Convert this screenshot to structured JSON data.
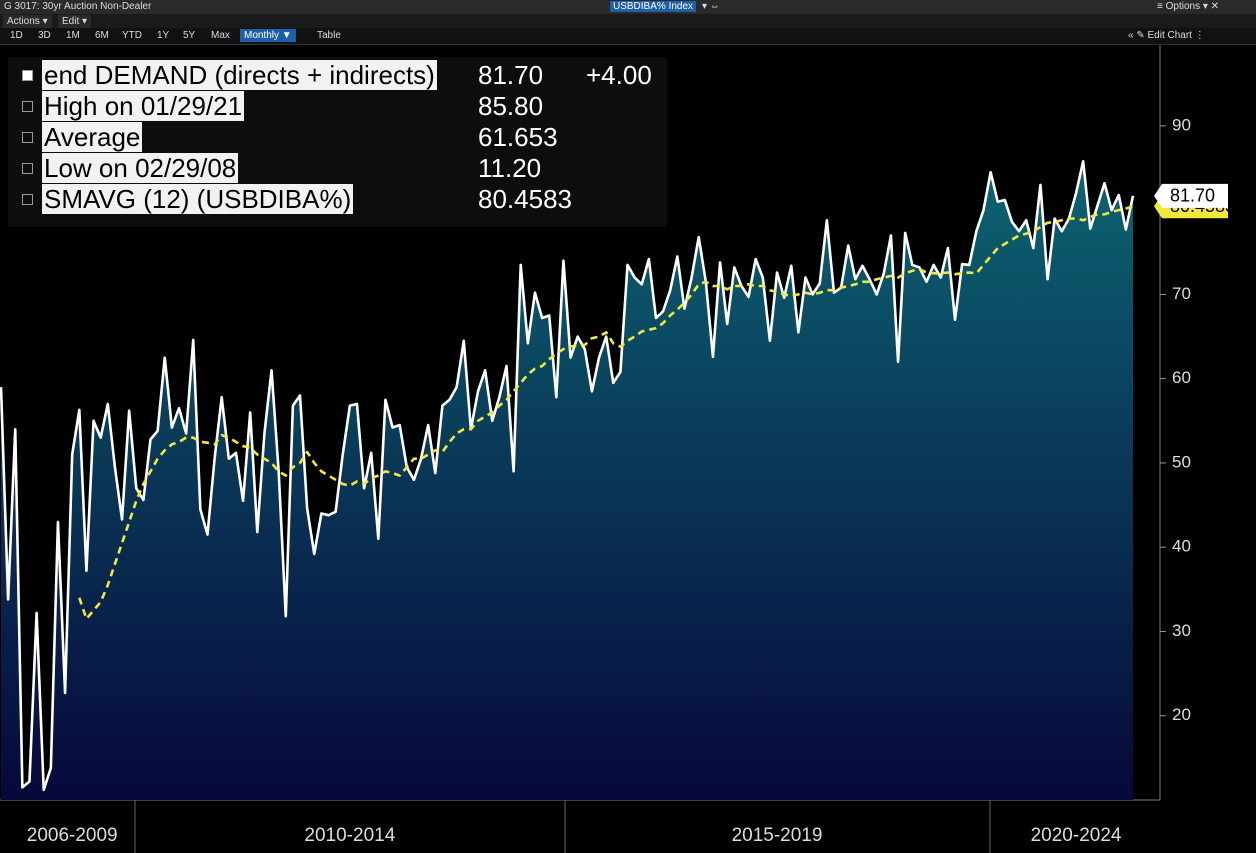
{
  "ui": {
    "title": "G 3017: 30yr Auction Non-Dealer",
    "ticker": "USBDIBA% Index",
    "options": "Options",
    "menus": [
      "Actions",
      "Edit"
    ],
    "ranges": [
      "1D",
      "3D",
      "1M",
      "6M",
      "YTD",
      "1Y",
      "5Y",
      "Max"
    ],
    "frequency": "Monthly",
    "table": "Table",
    "edit_chart": "Edit Chart"
  },
  "chart_data": {
    "type": "line",
    "categories": [
      null,
      null,
      null,
      null,
      null,
      null,
      null,
      null,
      null,
      null,
      "2006-2009",
      null,
      null,
      null,
      null,
      null,
      null,
      null,
      null,
      null,
      null,
      null,
      null,
      null,
      null,
      null,
      null,
      null,
      null,
      null,
      null,
      null,
      null,
      null,
      null,
      null,
      null,
      null,
      null,
      null,
      null,
      null,
      null,
      null,
      null,
      null,
      null,
      null,
      null,
      "2010-2014",
      null,
      null,
      null,
      null,
      null,
      null,
      null,
      null,
      null,
      null,
      null,
      null,
      null,
      null,
      null,
      null,
      null,
      null,
      null,
      null,
      null,
      null,
      null,
      null,
      null,
      null,
      null,
      null,
      null,
      null,
      null,
      null,
      null,
      null,
      null,
      null,
      null,
      null,
      null,
      null,
      null,
      null,
      null,
      null,
      null,
      null,
      null,
      null,
      null,
      null,
      null,
      null,
      null,
      null,
      null,
      null,
      null,
      null,
      null,
      "2015-2019",
      null,
      null,
      null,
      null,
      null,
      null,
      null,
      null,
      null,
      null,
      null,
      null,
      null,
      null,
      null,
      null,
      null,
      null,
      null,
      null,
      null,
      null,
      null,
      null,
      null,
      null,
      null,
      null,
      null,
      null,
      null,
      null,
      null,
      null,
      null,
      null,
      null,
      null,
      null,
      null,
      null,
      "2020-2024",
      null,
      null,
      null,
      null,
      null,
      null,
      null,
      null
    ],
    "series": [
      {
        "name": "end DEMAND (directs + indirects)",
        "color": "#ffffff",
        "fill": [
          "#0c6472",
          "#07073a"
        ],
        "last_label": "81.70",
        "change_label": "+4.00",
        "values": [
          59,
          33.8,
          54,
          11.5,
          12.2,
          32.2,
          11.2,
          13.8,
          43,
          22.7,
          51,
          56.3,
          37.2,
          55,
          53,
          57,
          49.5,
          43.3,
          56.2,
          47,
          45.6,
          52.8,
          53.8,
          62.5,
          54.2,
          56.5,
          53.5,
          64.6,
          44.5,
          41.5,
          50.5,
          57.8,
          50.5,
          51.2,
          45.5,
          56,
          41.8,
          53.5,
          61,
          49,
          31.8,
          56.8,
          58,
          44.6,
          39.2,
          44,
          43.8,
          44.2,
          51,
          56.8,
          57,
          47,
          51.2,
          41,
          57.5,
          54.2,
          54.5,
          49.5,
          48,
          50.5,
          54.5,
          48.8,
          56.8,
          57.5,
          59,
          64.5,
          54,
          58.5,
          61,
          55,
          57.8,
          61.5,
          49,
          73.5,
          64.2,
          70.2,
          67.2,
          67.5,
          57.8,
          74,
          62.5,
          65,
          63.5,
          58.5,
          62.5,
          65,
          59.5,
          60.8,
          73.5,
          72,
          71.2,
          74.2,
          67.2,
          68,
          70.5,
          74.5,
          68.3,
          72,
          76.8,
          71.5,
          62.6,
          73.8,
          66.5,
          73.2,
          71,
          69.7,
          74.2,
          72,
          64.5,
          72.6,
          69.6,
          73.4,
          65.5,
          72,
          70,
          71.3,
          78.8,
          70.2,
          70.8,
          75.8,
          71.8,
          73.4,
          71.8,
          70,
          72.5,
          77,
          62,
          77.3,
          73.5,
          73.2,
          71.5,
          73.5,
          72,
          75.5,
          67,
          73.6,
          73.5,
          77.5,
          80,
          84.5,
          81,
          81.2,
          78.6,
          77.5,
          78.8,
          75.5,
          83,
          71.8,
          79,
          77.5,
          79,
          82,
          85.8,
          77.8,
          80.5,
          83.2,
          80,
          81.8,
          77.7,
          81.7
        ]
      },
      {
        "name": "SMAVG (12) (USBDIBA%)",
        "color": "#f2e83a",
        "dashed": true,
        "last_label": "80.4583",
        "values": [
          null,
          null,
          null,
          null,
          null,
          null,
          null,
          null,
          null,
          null,
          null,
          34,
          31.5,
          32.5,
          33.5,
          35.5,
          38,
          40.5,
          43,
          45.5,
          47.5,
          49,
          50.5,
          51.5,
          52.2,
          52.5,
          53,
          53,
          52.5,
          52.4,
          52.2,
          53.3,
          53,
          52.5,
          52,
          51.8,
          51,
          50.5,
          50,
          49,
          48.5,
          49.5,
          50,
          51.3,
          50,
          49,
          48.5,
          48,
          47.5,
          47.3,
          47.8,
          47.5,
          48.2,
          48.5,
          49,
          48.8,
          48.5,
          49.5,
          50.5,
          50.5,
          51,
          51.5,
          51.3,
          52.5,
          53.5,
          54,
          54,
          55,
          55.5,
          56,
          56.8,
          57.5,
          58.5,
          59.5,
          60.5,
          61.2,
          61.5,
          62.3,
          63,
          63.5,
          63.8,
          64,
          64,
          64.8,
          65,
          65.5,
          64.2,
          63.8,
          64.5,
          65,
          65.6,
          65.8,
          66,
          66.6,
          67.5,
          68.2,
          69,
          70,
          71.2,
          71.5,
          71,
          71,
          70.6,
          71,
          71,
          71.2,
          71,
          71,
          70.5,
          70.3,
          70,
          69.8,
          70,
          70.2,
          70,
          70.2,
          70.5,
          70.5,
          70.8,
          71,
          71.2,
          71.5,
          71.5,
          71.8,
          72,
          72.2,
          72,
          72.5,
          72.8,
          73,
          72.6,
          72.5,
          72.5,
          72.6,
          72.4,
          72.5,
          72.6,
          72.5,
          73.5,
          74.5,
          75.5,
          76,
          76.5,
          77,
          77.2,
          77.5,
          78,
          78.5,
          78.6,
          78.8,
          79,
          79,
          78.8,
          79.2,
          79.5,
          79.5,
          79.8,
          80,
          80.2,
          80.4583
        ]
      }
    ],
    "stats": [
      {
        "label": "High on 01/29/21",
        "value": "85.80"
      },
      {
        "label": "Average",
        "value": "61.653"
      },
      {
        "label": "Low on 02/29/08",
        "value": "11.20"
      }
    ],
    "ylim": [
      10,
      99.6
    ],
    "yticks": [
      20,
      30,
      40,
      50,
      60,
      70,
      80,
      90
    ],
    "ytick_labels_shown": [
      true,
      true,
      true,
      true,
      true,
      true,
      false,
      true
    ],
    "axis_side": "right",
    "grid": false
  }
}
